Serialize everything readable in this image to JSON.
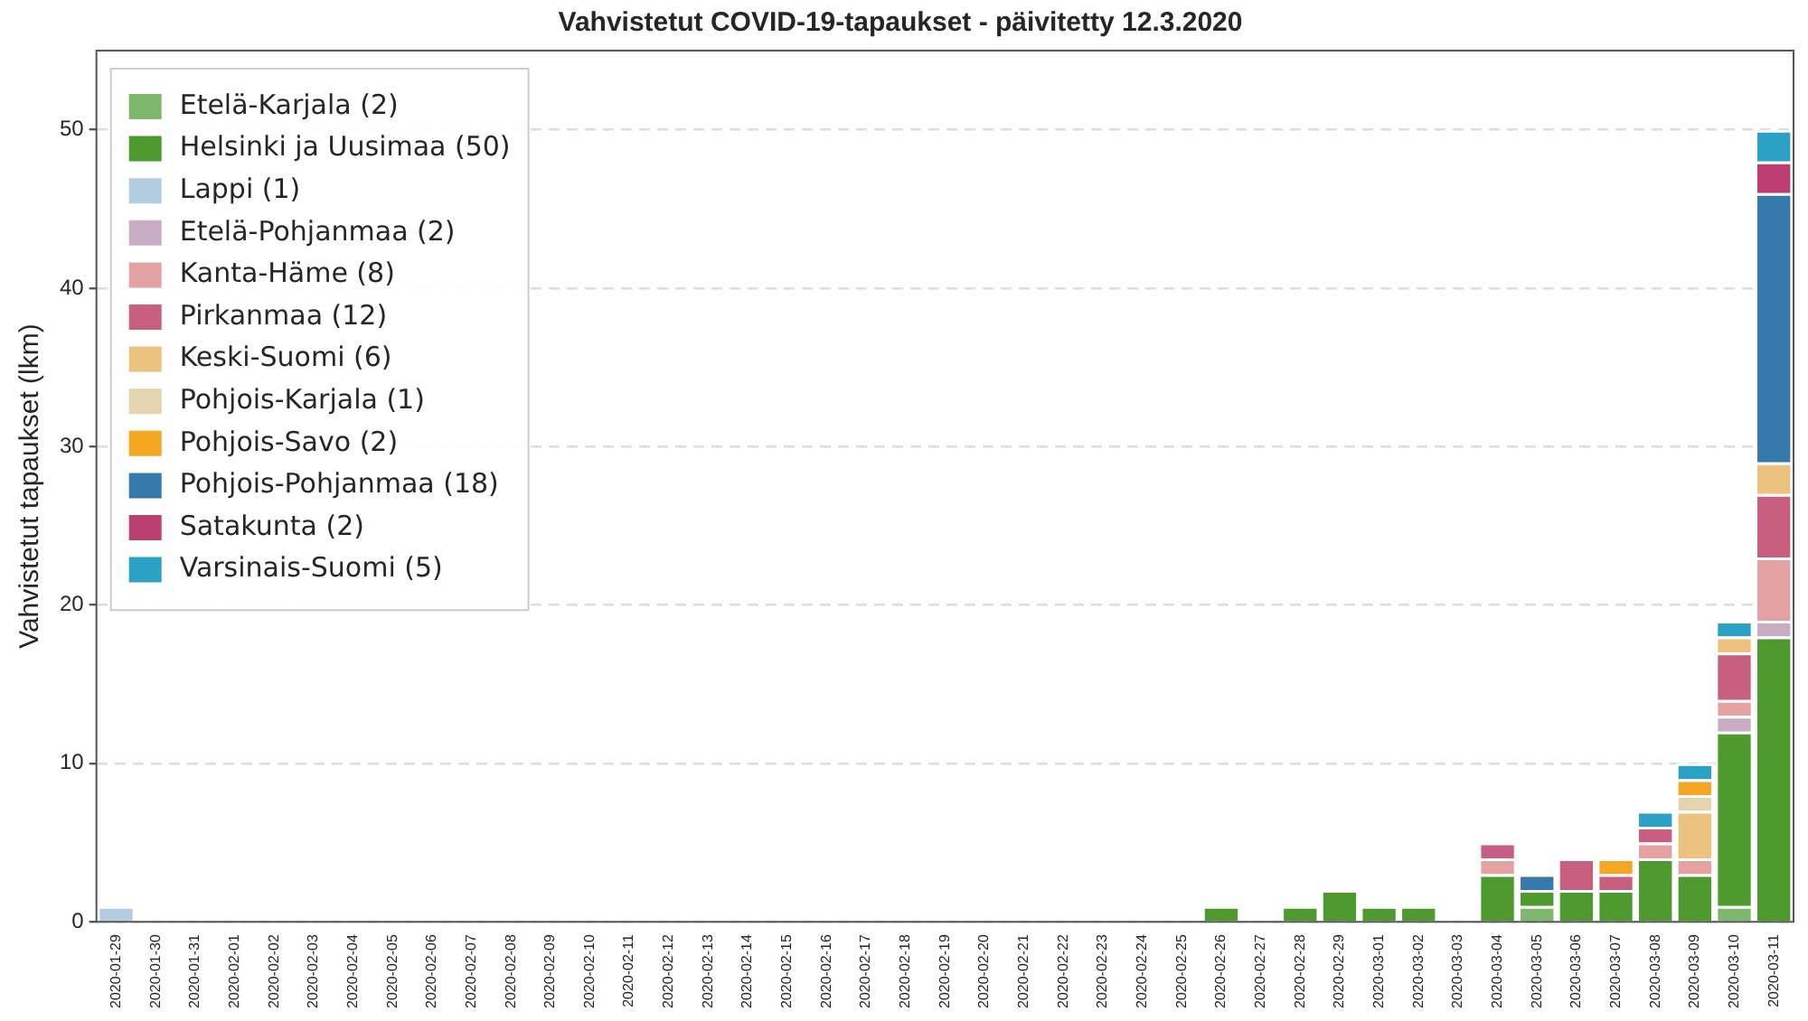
{
  "chart_data": {
    "type": "bar",
    "title": "Vahvistetut COVID-19-tapaukset - päivitetty 12.3.2020",
    "ylabel": "Vahvistetut tapaukset (lkm)",
    "categories": [
      "2020-01-29",
      "2020-01-30",
      "2020-01-31",
      "2020-02-01",
      "2020-02-02",
      "2020-02-03",
      "2020-02-04",
      "2020-02-05",
      "2020-02-06",
      "2020-02-07",
      "2020-02-08",
      "2020-02-09",
      "2020-02-10",
      "2020-02-11",
      "2020-02-12",
      "2020-02-13",
      "2020-02-14",
      "2020-02-15",
      "2020-02-16",
      "2020-02-17",
      "2020-02-18",
      "2020-02-19",
      "2020-02-20",
      "2020-02-21",
      "2020-02-22",
      "2020-02-23",
      "2020-02-24",
      "2020-02-25",
      "2020-02-26",
      "2020-02-27",
      "2020-02-28",
      "2020-02-29",
      "2020-03-01",
      "2020-03-02",
      "2020-03-03",
      "2020-03-04",
      "2020-03-05",
      "2020-03-06",
      "2020-03-07",
      "2020-03-08",
      "2020-03-09",
      "2020-03-10",
      "2020-03-11"
    ],
    "stacked": true,
    "ylim": [
      0,
      55
    ],
    "yticks": [
      0,
      10,
      20,
      30,
      40,
      50
    ],
    "grid": "y",
    "legend": "top left",
    "series": [
      {
        "name": "Etelä-Karjala (2)",
        "color": "#7fb86c",
        "values": [
          0,
          0,
          0,
          0,
          0,
          0,
          0,
          0,
          0,
          0,
          0,
          0,
          0,
          0,
          0,
          0,
          0,
          0,
          0,
          0,
          0,
          0,
          0,
          0,
          0,
          0,
          0,
          0,
          0,
          0,
          0,
          0,
          0,
          0,
          0,
          0,
          1,
          0,
          0,
          0,
          0,
          1,
          0
        ]
      },
      {
        "name": "Helsinki ja Uusimaa (50)",
        "color": "#4e9a2e",
        "values": [
          0,
          0,
          0,
          0,
          0,
          0,
          0,
          0,
          0,
          0,
          0,
          0,
          0,
          0,
          0,
          0,
          0,
          0,
          0,
          0,
          0,
          0,
          0,
          0,
          0,
          0,
          0,
          0,
          1,
          0,
          1,
          2,
          1,
          1,
          0,
          3,
          1,
          2,
          2,
          4,
          3,
          11,
          18
        ]
      },
      {
        "name": "Lappi (1)",
        "color": "#b3cde0",
        "values": [
          1,
          0,
          0,
          0,
          0,
          0,
          0,
          0,
          0,
          0,
          0,
          0,
          0,
          0,
          0,
          0,
          0,
          0,
          0,
          0,
          0,
          0,
          0,
          0,
          0,
          0,
          0,
          0,
          0,
          0,
          0,
          0,
          0,
          0,
          0,
          0,
          0,
          0,
          0,
          0,
          0,
          0,
          0
        ]
      },
      {
        "name": "Etelä-Pohjanmaa (2)",
        "color": "#c9adc5",
        "values": [
          0,
          0,
          0,
          0,
          0,
          0,
          0,
          0,
          0,
          0,
          0,
          0,
          0,
          0,
          0,
          0,
          0,
          0,
          0,
          0,
          0,
          0,
          0,
          0,
          0,
          0,
          0,
          0,
          0,
          0,
          0,
          0,
          0,
          0,
          0,
          0,
          0,
          0,
          0,
          0,
          0,
          1,
          1
        ]
      },
      {
        "name": "Kanta-Häme (8)",
        "color": "#e4a2a2",
        "values": [
          0,
          0,
          0,
          0,
          0,
          0,
          0,
          0,
          0,
          0,
          0,
          0,
          0,
          0,
          0,
          0,
          0,
          0,
          0,
          0,
          0,
          0,
          0,
          0,
          0,
          0,
          0,
          0,
          0,
          0,
          0,
          0,
          0,
          0,
          0,
          1,
          0,
          0,
          0,
          1,
          1,
          1,
          4
        ]
      },
      {
        "name": "Pirkanmaa (12)",
        "color": "#c95f80",
        "values": [
          0,
          0,
          0,
          0,
          0,
          0,
          0,
          0,
          0,
          0,
          0,
          0,
          0,
          0,
          0,
          0,
          0,
          0,
          0,
          0,
          0,
          0,
          0,
          0,
          0,
          0,
          0,
          0,
          0,
          0,
          0,
          0,
          0,
          0,
          0,
          1,
          0,
          2,
          1,
          1,
          0,
          3,
          4
        ]
      },
      {
        "name": "Keski-Suomi (6)",
        "color": "#ebc27f",
        "values": [
          0,
          0,
          0,
          0,
          0,
          0,
          0,
          0,
          0,
          0,
          0,
          0,
          0,
          0,
          0,
          0,
          0,
          0,
          0,
          0,
          0,
          0,
          0,
          0,
          0,
          0,
          0,
          0,
          0,
          0,
          0,
          0,
          0,
          0,
          0,
          0,
          0,
          0,
          0,
          0,
          3,
          1,
          2
        ]
      },
      {
        "name": "Pohjois-Karjala (1)",
        "color": "#e6d3b0",
        "values": [
          0,
          0,
          0,
          0,
          0,
          0,
          0,
          0,
          0,
          0,
          0,
          0,
          0,
          0,
          0,
          0,
          0,
          0,
          0,
          0,
          0,
          0,
          0,
          0,
          0,
          0,
          0,
          0,
          0,
          0,
          0,
          0,
          0,
          0,
          0,
          0,
          0,
          0,
          0,
          0,
          1,
          0,
          0
        ]
      },
      {
        "name": "Pohjois-Savo (2)",
        "color": "#f5a623",
        "values": [
          0,
          0,
          0,
          0,
          0,
          0,
          0,
          0,
          0,
          0,
          0,
          0,
          0,
          0,
          0,
          0,
          0,
          0,
          0,
          0,
          0,
          0,
          0,
          0,
          0,
          0,
          0,
          0,
          0,
          0,
          0,
          0,
          0,
          0,
          0,
          0,
          0,
          0,
          1,
          0,
          1,
          0,
          0
        ]
      },
      {
        "name": "Pohjois-Pohjanmaa (18)",
        "color": "#3579ad",
        "values": [
          0,
          0,
          0,
          0,
          0,
          0,
          0,
          0,
          0,
          0,
          0,
          0,
          0,
          0,
          0,
          0,
          0,
          0,
          0,
          0,
          0,
          0,
          0,
          0,
          0,
          0,
          0,
          0,
          0,
          0,
          0,
          0,
          0,
          0,
          0,
          0,
          1,
          0,
          0,
          0,
          0,
          0,
          17
        ]
      },
      {
        "name": "Satakunta (2)",
        "color": "#bc3f74",
        "values": [
          0,
          0,
          0,
          0,
          0,
          0,
          0,
          0,
          0,
          0,
          0,
          0,
          0,
          0,
          0,
          0,
          0,
          0,
          0,
          0,
          0,
          0,
          0,
          0,
          0,
          0,
          0,
          0,
          0,
          0,
          0,
          0,
          0,
          0,
          0,
          0,
          0,
          0,
          0,
          0,
          0,
          0,
          2
        ]
      },
      {
        "name": "Varsinais-Suomi (5)",
        "color": "#2ba1c5",
        "values": [
          0,
          0,
          0,
          0,
          0,
          0,
          0,
          0,
          0,
          0,
          0,
          0,
          0,
          0,
          0,
          0,
          0,
          0,
          0,
          0,
          0,
          0,
          0,
          0,
          0,
          0,
          0,
          0,
          0,
          0,
          0,
          0,
          0,
          0,
          0,
          0,
          0,
          0,
          0,
          1,
          1,
          1,
          2
        ]
      }
    ]
  }
}
